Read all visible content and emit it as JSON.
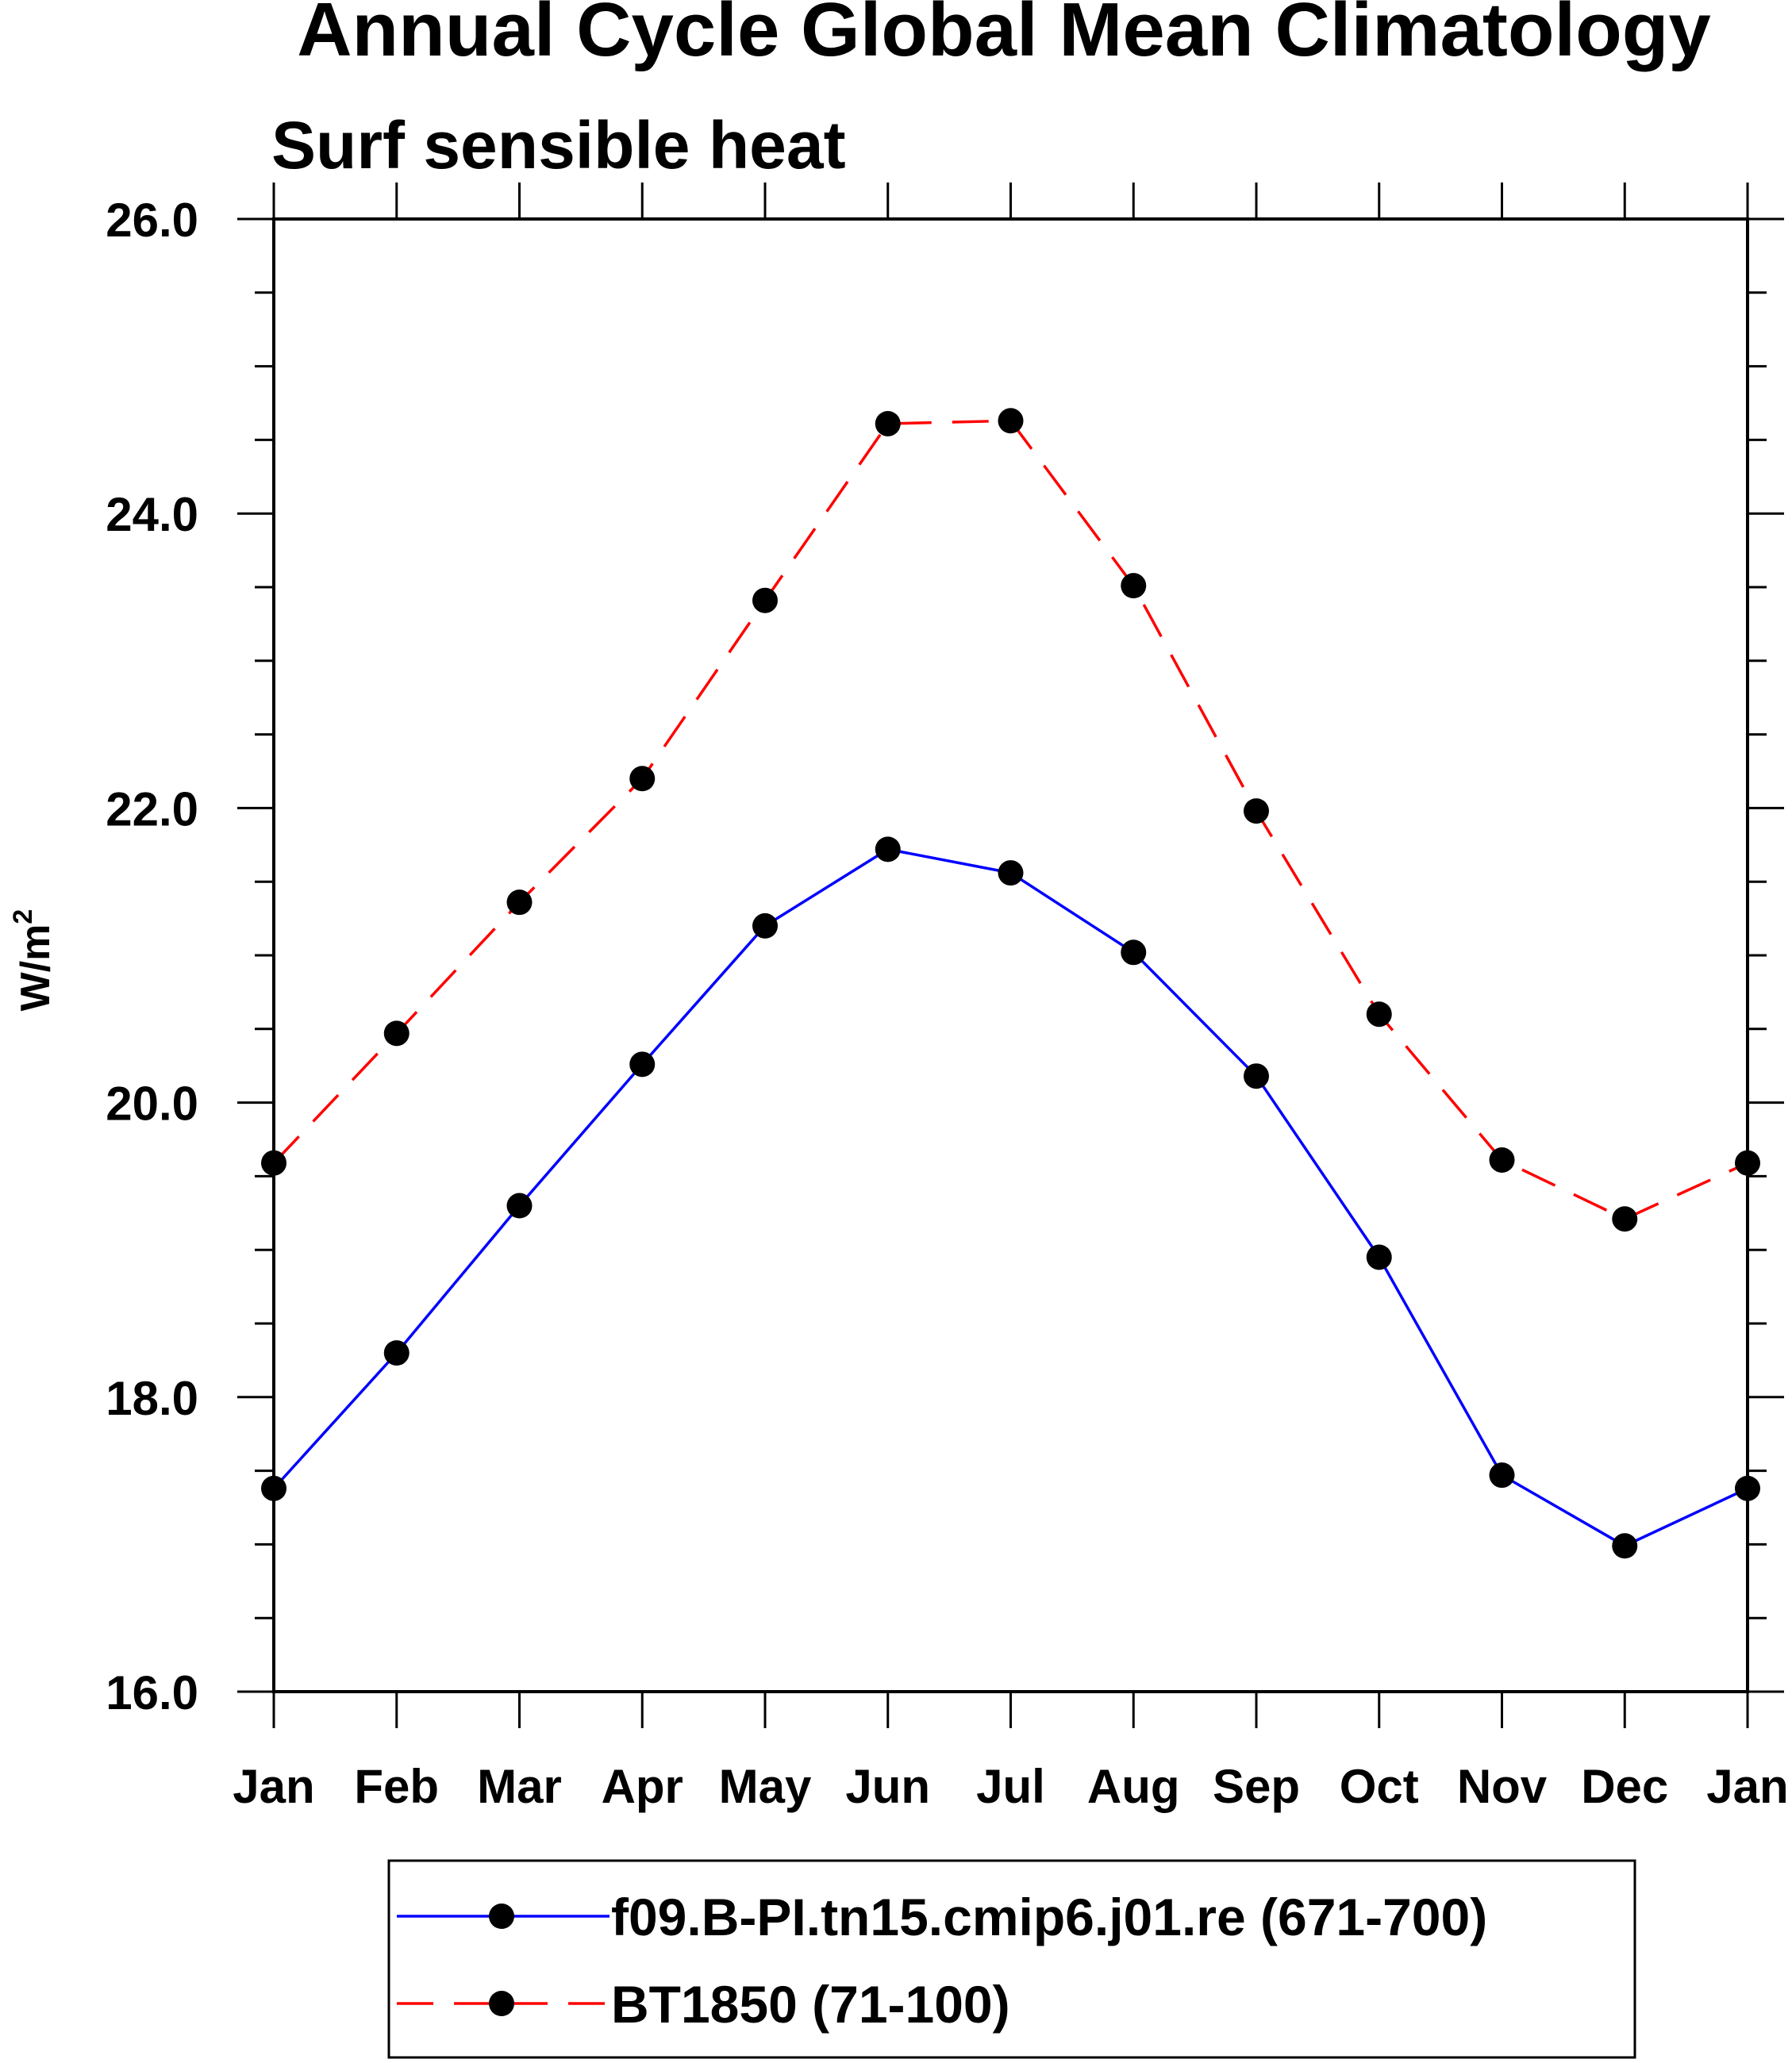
{
  "chart_data": {
    "type": "line",
    "title": "Annual Cycle Global Mean Climatology",
    "subtitle": "Surf sensible heat",
    "xlabel": "",
    "ylabel": "W/m",
    "ylabel_superscript": "2",
    "categories": [
      "Jan",
      "Feb",
      "Mar",
      "Apr",
      "May",
      "Jun",
      "Jul",
      "Aug",
      "Sep",
      "Oct",
      "Nov",
      "Dec",
      "Jan"
    ],
    "ylim": [
      16.0,
      26.0
    ],
    "yticks": [
      16.0,
      18.0,
      20.0,
      22.0,
      24.0,
      26.0
    ],
    "ytick_labels": [
      "16.0",
      "18.0",
      "20.0",
      "22.0",
      "24.0",
      "26.0"
    ],
    "minor_step": 0.5,
    "grid": false,
    "legend_position": "bottom",
    "series": [
      {
        "name": "f09.B-PI.tn15.cmip6.j01.re (671-700)",
        "color": "#0000ff",
        "dash": "solid",
        "marker": "circle",
        "values": [
          17.38,
          18.3,
          19.3,
          20.26,
          21.2,
          21.72,
          21.56,
          21.02,
          20.18,
          18.95,
          17.47,
          16.99,
          17.38
        ]
      },
      {
        "name": "BT1850 (71-100)",
        "color": "#ff0000",
        "dash": "dashed",
        "marker": "circle",
        "values": [
          19.59,
          20.47,
          21.36,
          22.2,
          23.41,
          24.61,
          24.63,
          23.51,
          21.98,
          20.6,
          19.61,
          19.21,
          19.59
        ]
      }
    ]
  }
}
